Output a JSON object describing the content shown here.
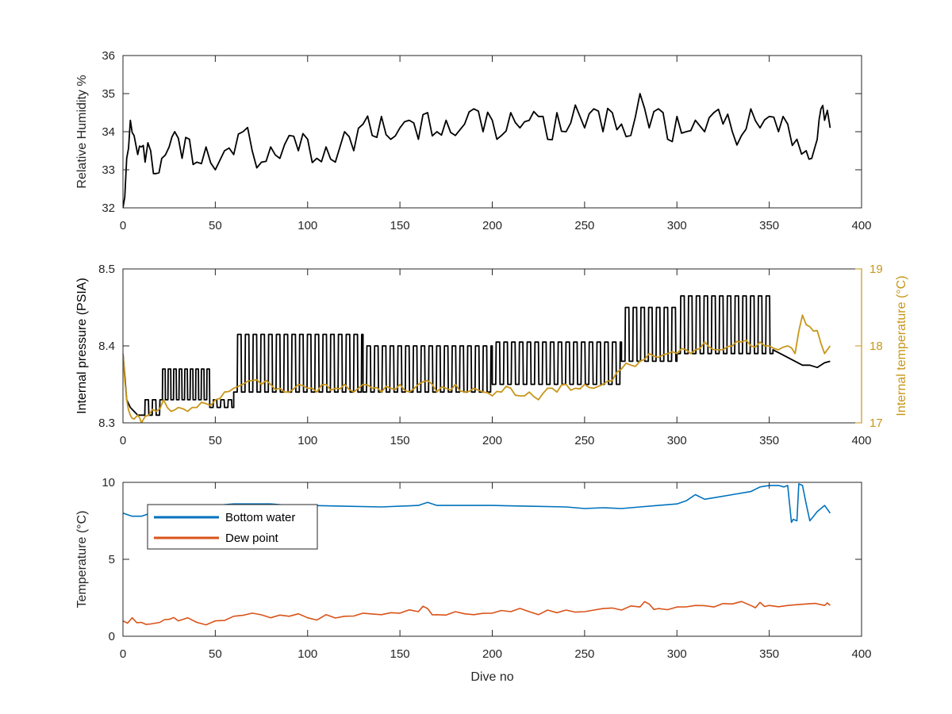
{
  "colors": {
    "black": "#000000",
    "gold": "#C89619",
    "blue": "#0072BD",
    "orange": "#D95319",
    "axis": "#262626"
  },
  "chart_data": [
    {
      "type": "line",
      "xlabel": "",
      "ylabel": "Relative Humidity %",
      "xlim": [
        0,
        400
      ],
      "ylim": [
        32,
        36
      ],
      "x_ticks": [
        "0",
        "50",
        "100",
        "150",
        "200",
        "250",
        "300",
        "350",
        "400"
      ],
      "y_ticks": [
        "32",
        "33",
        "34",
        "35",
        "36"
      ],
      "series": [
        {
          "color": "#000000",
          "x": [
            0,
            2,
            4,
            6,
            8,
            10,
            12,
            15,
            18,
            21,
            25,
            28,
            32,
            36,
            40,
            45,
            50,
            55,
            60,
            65,
            70,
            75,
            80,
            85,
            90,
            95,
            100,
            105,
            110,
            115,
            120,
            125,
            130,
            135,
            140,
            145,
            150,
            155,
            160,
            165,
            170,
            175,
            180,
            185,
            190,
            195,
            200,
            205,
            210,
            215,
            220,
            225,
            230,
            235,
            240,
            245,
            250,
            255,
            260,
            265,
            270,
            275,
            280,
            285,
            290,
            295,
            300,
            305,
            310,
            315,
            320,
            325,
            330,
            335,
            340,
            345,
            350,
            355,
            360,
            365,
            370,
            373,
            376,
            378,
            380,
            383
          ],
          "y": [
            32.0,
            33.3,
            34.3,
            33.9,
            33.4,
            33.6,
            33.2,
            33.5,
            32.9,
            33.3,
            33.6,
            34.0,
            33.3,
            33.8,
            33.2,
            33.6,
            33.0,
            33.5,
            33.4,
            34.0,
            33.5,
            33.2,
            33.6,
            33.3,
            33.9,
            33.5,
            33.8,
            33.3,
            33.6,
            33.2,
            34.0,
            33.5,
            34.2,
            33.9,
            34.4,
            33.8,
            34.1,
            34.3,
            33.8,
            34.5,
            34.0,
            34.3,
            33.9,
            34.2,
            34.6,
            34.0,
            34.3,
            33.9,
            34.5,
            34.1,
            34.3,
            34.4,
            33.8,
            34.5,
            34.0,
            34.7,
            34.1,
            34.6,
            34.0,
            34.5,
            34.2,
            33.9,
            35.0,
            34.1,
            34.6,
            33.8,
            34.4,
            34.0,
            34.3,
            34.0,
            34.5,
            34.2,
            34.0,
            33.9,
            34.6,
            34.1,
            34.4,
            34.0,
            34.2,
            33.8,
            33.5,
            33.3,
            33.8,
            34.6,
            34.3,
            34.1
          ]
        }
      ]
    },
    {
      "type": "line",
      "xlabel": "",
      "ylabel": "Internal pressure (PSIA)",
      "y2label": "Internal temperature (°C)",
      "xlim": [
        0,
        400
      ],
      "ylim": [
        8.3,
        8.5
      ],
      "y2lim": [
        17,
        19
      ],
      "x_ticks": [
        "0",
        "50",
        "100",
        "150",
        "200",
        "250",
        "300",
        "350",
        "400"
      ],
      "y_ticks": [
        "8.3",
        "8.4",
        "8.5"
      ],
      "y2_ticks": [
        "17",
        "18",
        "19"
      ],
      "series": [
        {
          "name_hidden": true,
          "axis": "left",
          "color": "#000000",
          "segments": [
            {
              "x0": 0,
              "x1": 20,
              "low": 8.31,
              "high": 8.33,
              "period": 4
            },
            {
              "x0": 20,
              "x1": 47,
              "low": 8.33,
              "high": 8.37,
              "period": 3
            },
            {
              "x0": 47,
              "x1": 60,
              "low": 8.32,
              "high": 8.33,
              "period": 4
            },
            {
              "x0": 60,
              "x1": 130,
              "low": 8.34,
              "high": 8.415,
              "period": 4.2
            },
            {
              "x0": 130,
              "x1": 200,
              "low": 8.34,
              "high": 8.4,
              "period": 4.2
            },
            {
              "x0": 200,
              "x1": 270,
              "low": 8.35,
              "high": 8.405,
              "period": 4.2
            },
            {
              "x0": 270,
              "x1": 300,
              "low": 8.38,
              "high": 8.45,
              "period": 4.2
            },
            {
              "x0": 300,
              "x1": 352,
              "low": 8.39,
              "high": 8.465,
              "period": 4.2
            }
          ],
          "tail": {
            "x": [
              0,
              2,
              4,
              6,
              8,
              10,
              352,
              356,
              360,
              364,
              368,
              372,
              376,
              380,
              383
            ],
            "y": [
              8.39,
              8.33,
              8.32,
              8.315,
              8.31,
              8.31,
              8.395,
              8.39,
              8.385,
              8.38,
              8.375,
              8.375,
              8.372,
              8.378,
              8.38
            ]
          }
        },
        {
          "axis": "right",
          "color": "#C89619",
          "x": [
            0,
            2,
            4,
            6,
            8,
            10,
            14,
            18,
            22,
            26,
            30,
            35,
            40,
            45,
            50,
            55,
            60,
            65,
            70,
            75,
            80,
            85,
            90,
            95,
            100,
            105,
            110,
            115,
            120,
            125,
            130,
            135,
            140,
            145,
            150,
            155,
            160,
            165,
            170,
            175,
            180,
            185,
            190,
            195,
            200,
            205,
            210,
            215,
            220,
            225,
            230,
            235,
            240,
            245,
            250,
            255,
            260,
            265,
            270,
            275,
            280,
            285,
            290,
            295,
            300,
            305,
            310,
            315,
            320,
            325,
            330,
            335,
            340,
            345,
            350,
            355,
            360,
            364,
            368,
            372,
            376,
            380,
            383
          ],
          "y": [
            17.9,
            17.3,
            17.1,
            17.05,
            17.1,
            17.0,
            17.1,
            17.15,
            17.3,
            17.15,
            17.2,
            17.15,
            17.2,
            17.25,
            17.3,
            17.4,
            17.45,
            17.5,
            17.55,
            17.5,
            17.5,
            17.45,
            17.4,
            17.5,
            17.45,
            17.4,
            17.5,
            17.45,
            17.5,
            17.4,
            17.5,
            17.45,
            17.4,
            17.45,
            17.5,
            17.4,
            17.5,
            17.55,
            17.4,
            17.45,
            17.5,
            17.4,
            17.45,
            17.4,
            17.35,
            17.4,
            17.45,
            17.35,
            17.4,
            17.3,
            17.45,
            17.4,
            17.5,
            17.45,
            17.5,
            17.45,
            17.5,
            17.55,
            17.7,
            17.75,
            17.8,
            17.9,
            17.85,
            17.9,
            17.9,
            17.95,
            17.95,
            18.05,
            17.95,
            17.95,
            18.0,
            18.05,
            18.0,
            18.05,
            18.0,
            17.95,
            18.0,
            17.9,
            18.4,
            18.25,
            18.2,
            17.9,
            18.0
          ]
        }
      ]
    },
    {
      "type": "line",
      "xlabel": "Dive no",
      "ylabel": "Temperature (°C)",
      "xlim": [
        0,
        400
      ],
      "ylim": [
        0,
        10
      ],
      "x_ticks": [
        "0",
        "50",
        "100",
        "150",
        "200",
        "250",
        "300",
        "350",
        "400"
      ],
      "y_ticks": [
        "0",
        "5",
        "10"
      ],
      "legend": "top-left",
      "series": [
        {
          "name": "Bottom water",
          "color": "#0072BD",
          "x": [
            0,
            5,
            10,
            15,
            20,
            30,
            40,
            50,
            60,
            70,
            80,
            90,
            100,
            120,
            140,
            160,
            165,
            170,
            180,
            200,
            220,
            240,
            250,
            260,
            270,
            280,
            290,
            300,
            305,
            310,
            315,
            320,
            330,
            340,
            345,
            350,
            355,
            358,
            360,
            362,
            363,
            365,
            366,
            368,
            370,
            372,
            374,
            376,
            378,
            380,
            383
          ],
          "y": [
            8.0,
            7.8,
            7.8,
            8.0,
            8.3,
            8.5,
            8.5,
            8.5,
            8.6,
            8.6,
            8.6,
            8.5,
            8.5,
            8.45,
            8.4,
            8.5,
            8.7,
            8.5,
            8.5,
            8.5,
            8.45,
            8.4,
            8.3,
            8.35,
            8.3,
            8.4,
            8.5,
            8.6,
            8.8,
            9.2,
            8.9,
            9.0,
            9.2,
            9.4,
            9.7,
            9.8,
            9.8,
            9.7,
            9.8,
            7.4,
            7.6,
            7.5,
            9.9,
            9.8,
            8.6,
            7.5,
            7.8,
            8.1,
            8.3,
            8.5,
            8.0
          ]
        },
        {
          "name": "Dew point",
          "color": "#D95319",
          "x": [
            0,
            5,
            10,
            15,
            20,
            25,
            30,
            40,
            50,
            60,
            70,
            80,
            90,
            100,
            110,
            120,
            130,
            140,
            150,
            160,
            165,
            170,
            180,
            190,
            200,
            210,
            220,
            230,
            240,
            250,
            260,
            270,
            280,
            285,
            290,
            300,
            310,
            320,
            330,
            340,
            345,
            350,
            360,
            370,
            380,
            383
          ],
          "y": [
            1.0,
            1.2,
            0.9,
            0.8,
            0.9,
            1.1,
            1.0,
            0.9,
            1.0,
            1.3,
            1.5,
            1.2,
            1.3,
            1.2,
            1.4,
            1.3,
            1.5,
            1.4,
            1.5,
            1.6,
            1.8,
            1.4,
            1.6,
            1.4,
            1.5,
            1.6,
            1.6,
            1.7,
            1.7,
            1.6,
            1.8,
            1.7,
            1.9,
            2.1,
            1.8,
            1.9,
            2.0,
            1.9,
            2.1,
            2.0,
            2.2,
            2.0,
            2.0,
            2.1,
            2.0,
            2.0
          ]
        }
      ]
    }
  ]
}
